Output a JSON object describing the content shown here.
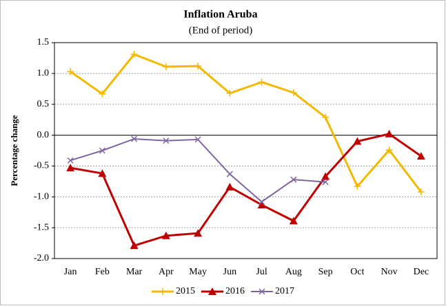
{
  "chart_data": {
    "type": "line",
    "title": "Inflation Aruba",
    "subtitle": "(End of period)",
    "y_label": "Percentage change",
    "categories": [
      "Jan",
      "Feb",
      "Mar",
      "Apr",
      "May",
      "Jun",
      "Jul",
      "Aug",
      "Sep",
      "Oct",
      "Nov",
      "Dec"
    ],
    "series": [
      {
        "name": "2015",
        "color": "#f5b800",
        "marker": "plus",
        "values": [
          1.03,
          0.67,
          1.31,
          1.11,
          1.12,
          0.68,
          0.86,
          0.69,
          0.29,
          -0.83,
          -0.24,
          -0.92
        ]
      },
      {
        "name": "2016",
        "color": "#c00000",
        "marker": "triangle",
        "values": [
          -0.53,
          -0.62,
          -1.79,
          -1.63,
          -1.59,
          -0.84,
          -1.13,
          -1.39,
          -0.67,
          -0.1,
          0.02,
          -0.34
        ]
      },
      {
        "name": "2017",
        "color": "#8064a2",
        "marker": "cross",
        "values": [
          -0.41,
          -0.25,
          -0.06,
          -0.09,
          -0.07,
          -0.63,
          -1.08,
          -0.72,
          -0.76,
          null,
          null,
          null
        ]
      }
    ],
    "ylim": [
      -2.0,
      1.5
    ],
    "yticks": [
      1.5,
      {
        "value": 1.0,
        "label": "1.0"
      },
      0.5,
      {
        "value": 0.0,
        "label": "0.0"
      },
      -0.5,
      {
        "value": -1.0,
        "label": "-1.0"
      },
      -1.5,
      {
        "value": -2.0,
        "label": "-2.0"
      }
    ],
    "grid": true,
    "legend": "bottom"
  }
}
